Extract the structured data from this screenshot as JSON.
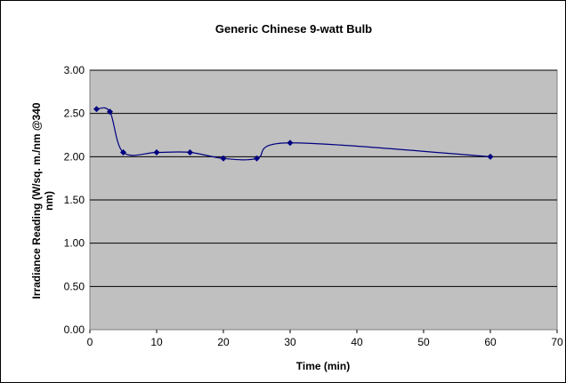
{
  "chart_data": {
    "type": "line",
    "title": "Generic Chinese 9-watt Bulb",
    "xlabel": "Time (min)",
    "ylabel_lines": [
      "Irradiance Reading (W/sq. m./nm @340",
      "nm)"
    ],
    "xlim": [
      0,
      70
    ],
    "ylim": [
      0,
      3
    ],
    "x_ticks": [
      "0",
      "10",
      "20",
      "30",
      "40",
      "50",
      "60",
      "70"
    ],
    "y_ticks": [
      "0.00",
      "0.50",
      "1.00",
      "1.50",
      "2.00",
      "2.50",
      "3.00"
    ],
    "x_tick_values": [
      0,
      10,
      20,
      30,
      40,
      50,
      60,
      70
    ],
    "y_tick_values": [
      0,
      0.5,
      1,
      1.5,
      2,
      2.5,
      3
    ],
    "grid": "horizontal",
    "legend": "none",
    "series": [
      {
        "x": [
          1,
          3,
          5,
          10,
          15,
          20,
          25,
          30,
          60
        ],
        "y": [
          2.55,
          2.52,
          2.05,
          2.05,
          2.05,
          1.98,
          1.98,
          2.16,
          2.0
        ]
      }
    ],
    "colors": {
      "plot_background": "#c0c0c0",
      "line": "#000080",
      "marker": "#000080",
      "gridline": "#000000"
    }
  }
}
